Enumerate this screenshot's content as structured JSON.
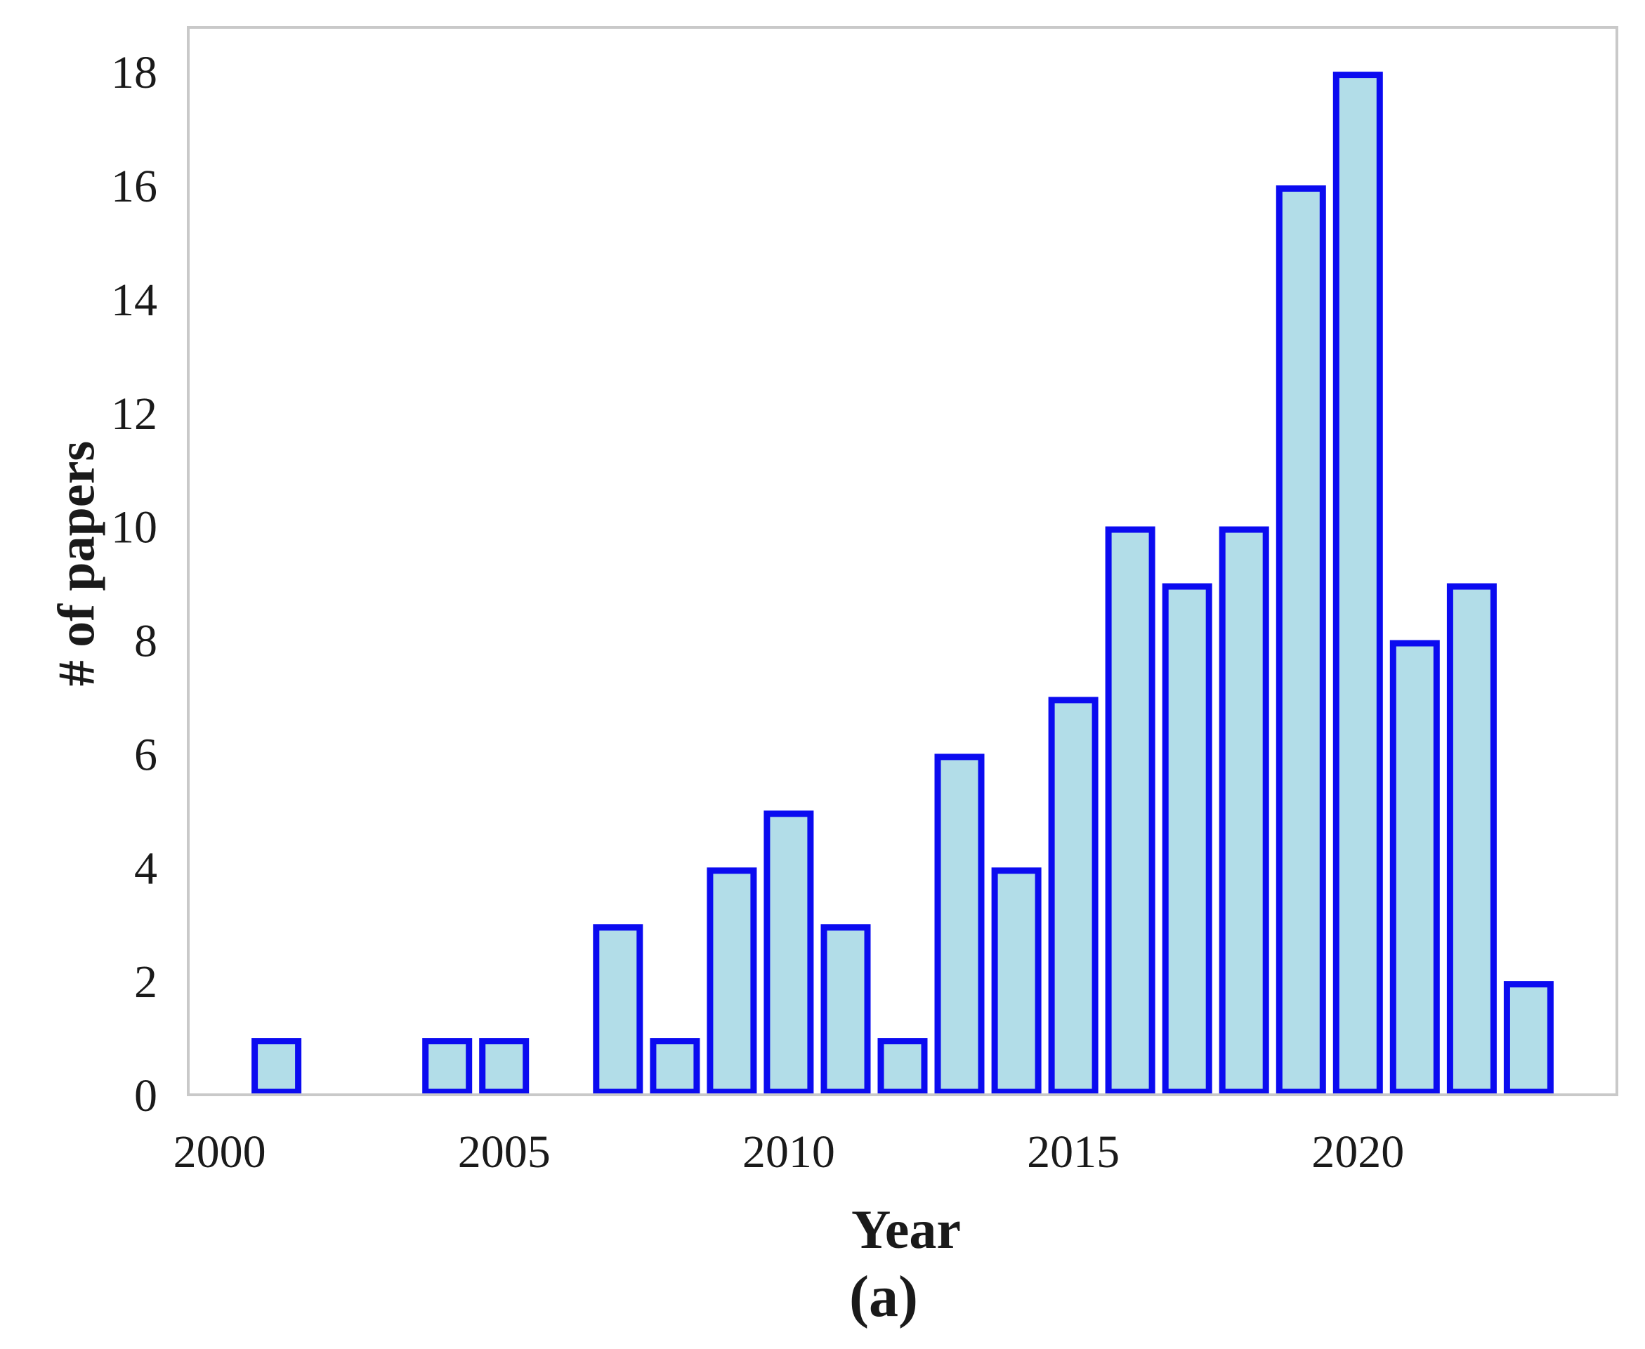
{
  "figure": {
    "xlabel": "Year",
    "ylabel": "# of papers",
    "caption": "(a)"
  },
  "chart_data": {
    "type": "bar",
    "title": "",
    "xlabel": "Year",
    "ylabel": "# of papers",
    "caption": "(a)",
    "x": [
      2001,
      2004,
      2005,
      2007,
      2008,
      2009,
      2010,
      2011,
      2012,
      2013,
      2014,
      2015,
      2016,
      2017,
      2018,
      2019,
      2020,
      2021,
      2022,
      2023
    ],
    "values": [
      1,
      1,
      1,
      3,
      1,
      4,
      5,
      3,
      1,
      6,
      4,
      7,
      10,
      9,
      10,
      16,
      18,
      8,
      9,
      2
    ],
    "x_tick_labels": [
      "2000",
      "2005",
      "2010",
      "2015",
      "2020"
    ],
    "x_tick_values": [
      2000,
      2005,
      2010,
      2015,
      2020
    ],
    "y_ticks": [
      0,
      2,
      4,
      6,
      8,
      10,
      12,
      14,
      16,
      18
    ],
    "xlim": [
      1999.45,
      2024.55
    ],
    "ylim": [
      0,
      18.78
    ],
    "grid": false,
    "legend": null,
    "colors": {
      "bar_fill": "#b2dde8",
      "bar_stroke": "#0b0bf0",
      "spine": "#c9c9c9",
      "text": "#1a1a1a",
      "background": "#ffffff"
    }
  }
}
